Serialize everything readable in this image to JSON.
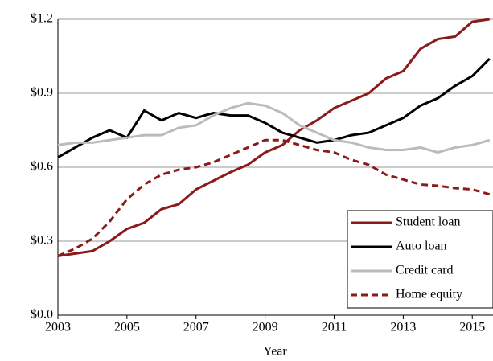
{
  "chart_data": {
    "type": "line",
    "xlabel": "Year",
    "x": [
      2003,
      2003.5,
      2004,
      2004.5,
      2005,
      2005.5,
      2006,
      2006.5,
      2007,
      2007.5,
      2008,
      2008.5,
      2009,
      2009.5,
      2010,
      2010.5,
      2011,
      2011.5,
      2012,
      2012.5,
      2013,
      2013.5,
      2014,
      2014.5,
      2015,
      2015.5
    ],
    "series": [
      {
        "name": "Student loan",
        "color": "#8b1a1a",
        "linestyle": "solid",
        "values": [
          0.24,
          0.25,
          0.26,
          0.3,
          0.35,
          0.375,
          0.43,
          0.45,
          0.51,
          0.545,
          0.58,
          0.61,
          0.66,
          0.69,
          0.75,
          0.79,
          0.84,
          0.87,
          0.9,
          0.96,
          0.99,
          1.08,
          1.12,
          1.13,
          1.19,
          1.2
        ]
      },
      {
        "name": "Auto loan",
        "color": "#000000",
        "linestyle": "solid",
        "values": [
          0.64,
          0.68,
          0.72,
          0.75,
          0.72,
          0.83,
          0.79,
          0.82,
          0.8,
          0.82,
          0.81,
          0.81,
          0.78,
          0.74,
          0.72,
          0.7,
          0.71,
          0.73,
          0.74,
          0.77,
          0.8,
          0.85,
          0.88,
          0.93,
          0.97,
          1.04
        ]
      },
      {
        "name": "Credit card",
        "color": "#bbbbbb",
        "linestyle": "solid",
        "values": [
          0.69,
          0.7,
          0.7,
          0.71,
          0.72,
          0.73,
          0.73,
          0.76,
          0.77,
          0.81,
          0.84,
          0.86,
          0.85,
          0.82,
          0.77,
          0.74,
          0.71,
          0.7,
          0.68,
          0.67,
          0.67,
          0.68,
          0.66,
          0.68,
          0.69,
          0.71
        ]
      },
      {
        "name": "Home equity",
        "color": "#8b1a1a",
        "linestyle": "dashed",
        "values": [
          0.24,
          0.27,
          0.31,
          0.38,
          0.47,
          0.53,
          0.57,
          0.59,
          0.6,
          0.62,
          0.65,
          0.68,
          0.71,
          0.71,
          0.69,
          0.67,
          0.66,
          0.63,
          0.61,
          0.57,
          0.55,
          0.53,
          0.525,
          0.515,
          0.51,
          0.49
        ]
      }
    ],
    "xlim": [
      2003,
      2015.6
    ],
    "xticks": [
      2003,
      2005,
      2007,
      2009,
      2011,
      2013,
      2015
    ],
    "ylim": [
      0,
      1.2
    ],
    "yticks": [
      {
        "value": 0,
        "label": "$0.0"
      },
      {
        "value": 0.3,
        "label": "$0.3"
      },
      {
        "value": 0.6,
        "label": "$0.6"
      },
      {
        "value": 0.9,
        "label": "$0.9"
      },
      {
        "value": 1.2,
        "label": "$1.2"
      }
    ],
    "grid": true,
    "legend": "lower right"
  }
}
